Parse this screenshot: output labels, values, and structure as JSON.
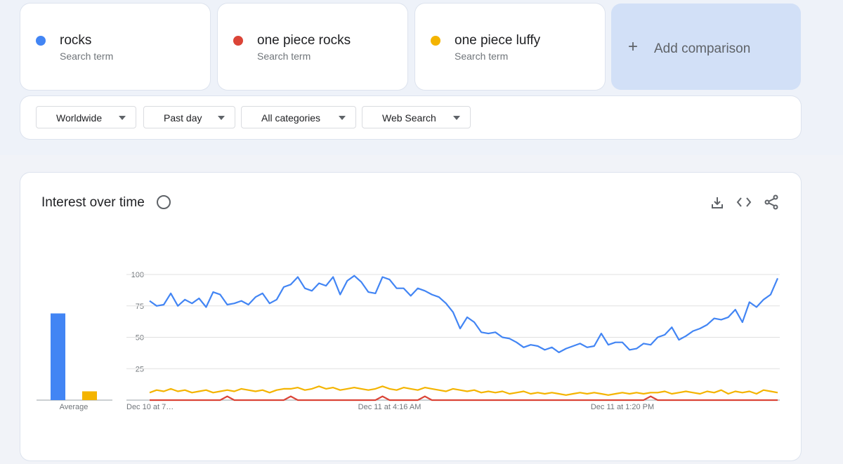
{
  "term_cards": [
    {
      "sublabel": "Search term"
    },
    {
      "sublabel": "Search term"
    },
    {
      "sublabel": "Search term"
    }
  ],
  "add_comparison": "Add comparison",
  "filters": [
    "Worldwide",
    "Past day",
    "All categories",
    "Web Search"
  ],
  "chart_data": [
    {
      "type": "bar",
      "categories": [
        "Average"
      ],
      "ylim": [
        0,
        100
      ],
      "series": [
        {
          "color": "#4285f4",
          "values": [
            69
          ]
        },
        {
          "color": "#db4437",
          "values": [
            0
          ]
        },
        {
          "color": "#f4b400",
          "values": [
            7
          ]
        }
      ]
    },
    {
      "type": "line",
      "title": "Interest over time",
      "ylim": [
        0,
        100
      ],
      "yticks": [
        25,
        50,
        75,
        100
      ],
      "grid": true,
      "categories": [
        "Dec 10 at 7…",
        null,
        null,
        null,
        null,
        null,
        null,
        null,
        null,
        null,
        null,
        null,
        null,
        null,
        null,
        null,
        null,
        null,
        null,
        null,
        null,
        null,
        null,
        null,
        null,
        null,
        null,
        null,
        null,
        null,
        null,
        null,
        null,
        null,
        "Dec 11 at 4:16 AM",
        null,
        null,
        null,
        null,
        null,
        null,
        null,
        null,
        null,
        null,
        null,
        null,
        null,
        null,
        null,
        null,
        null,
        null,
        null,
        null,
        null,
        null,
        null,
        null,
        null,
        null,
        null,
        null,
        null,
        null,
        null,
        null,
        "Dec 11 at 1:20 PM",
        null,
        null,
        null,
        null,
        null,
        null,
        null,
        null,
        null,
        null,
        null,
        null,
        null,
        null,
        null,
        null,
        null,
        null,
        null,
        null,
        null,
        null
      ],
      "series": [
        {
          "name": "rocks",
          "color": "#4285f4",
          "values": [
            79,
            75,
            76,
            85,
            75,
            80,
            77,
            81,
            74,
            86,
            84,
            76,
            77,
            79,
            76,
            82,
            85,
            77,
            80,
            90,
            92,
            98,
            89,
            87,
            93,
            91,
            98,
            84,
            95,
            99,
            94,
            86,
            85,
            98,
            96,
            89,
            89,
            83,
            89,
            87,
            84,
            82,
            77,
            70,
            57,
            66,
            62,
            54,
            53,
            54,
            50,
            49,
            46,
            42,
            44,
            43,
            40,
            42,
            38,
            41,
            43,
            45,
            42,
            43,
            53,
            44,
            46,
            46,
            40,
            41,
            45,
            44,
            50,
            52,
            58,
            48,
            51,
            55,
            57,
            60,
            65,
            64,
            66,
            72,
            62,
            78,
            74,
            80,
            84,
            97
          ]
        },
        {
          "name": "one piece rocks",
          "color": "#db4437",
          "values": [
            0,
            0,
            0,
            0,
            0,
            0,
            0,
            0,
            0,
            0,
            0,
            3,
            0,
            0,
            0,
            0,
            0,
            0,
            0,
            0,
            3,
            0,
            0,
            0,
            0,
            0,
            0,
            0,
            0,
            0,
            0,
            0,
            0,
            3,
            0,
            0,
            0,
            0,
            0,
            3,
            0,
            0,
            0,
            0,
            0,
            0,
            0,
            0,
            0,
            0,
            0,
            0,
            0,
            0,
            0,
            0,
            0,
            0,
            0,
            0,
            0,
            0,
            0,
            0,
            0,
            0,
            0,
            0,
            0,
            0,
            0,
            3,
            0,
            0,
            0,
            0,
            0,
            0,
            0,
            0,
            0,
            0,
            0,
            0,
            0,
            0,
            0,
            0,
            0,
            0
          ]
        },
        {
          "name": "one piece luffy",
          "color": "#f4b400",
          "values": [
            6,
            8,
            7,
            9,
            7,
            8,
            6,
            7,
            8,
            6,
            7,
            8,
            7,
            9,
            8,
            7,
            8,
            6,
            8,
            9,
            9,
            10,
            8,
            9,
            11,
            9,
            10,
            8,
            9,
            10,
            9,
            8,
            9,
            11,
            9,
            8,
            10,
            9,
            8,
            10,
            9,
            8,
            7,
            9,
            8,
            7,
            8,
            6,
            7,
            6,
            7,
            5,
            6,
            7,
            5,
            6,
            5,
            6,
            5,
            4,
            5,
            6,
            5,
            6,
            5,
            4,
            5,
            6,
            5,
            6,
            5,
            6,
            6,
            7,
            5,
            6,
            7,
            6,
            5,
            7,
            6,
            8,
            5,
            7,
            6,
            7,
            5,
            8,
            7,
            6
          ]
        }
      ]
    }
  ]
}
